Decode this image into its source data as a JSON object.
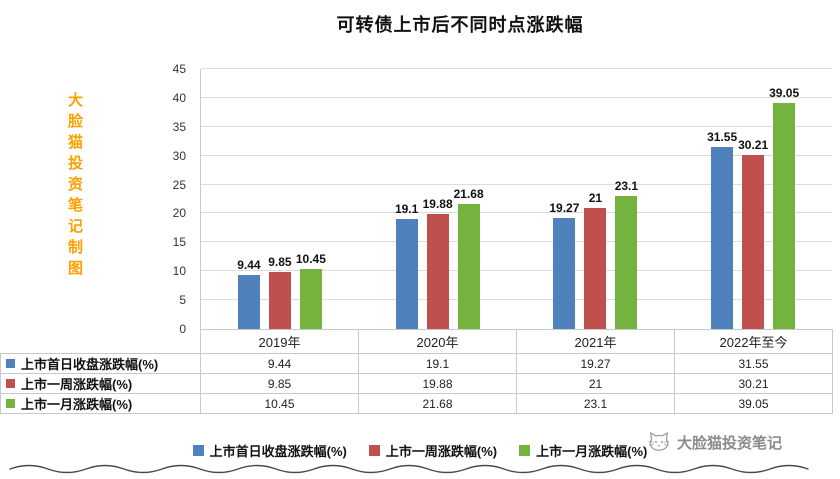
{
  "title": "可转债上市后不同时点涨跌幅",
  "left_watermark": "大脸猫投资笔记制图",
  "footer_watermark": "大脸猫投资笔记",
  "colors": {
    "series_blue": "#4F81BD",
    "series_red": "#C0504D",
    "series_green": "#74B33E",
    "left_watermark": "#FFA000",
    "footer_watermark": "#8C8C8C",
    "grid": "#DDDDDD",
    "table_border": "#C9C9C9"
  },
  "chart_data": {
    "type": "bar",
    "title": "可转债上市后不同时点涨跌幅",
    "xlabel": "",
    "ylabel": "",
    "categories": [
      "2019年",
      "2020年",
      "2021年",
      "2022年至今"
    ],
    "series": [
      {
        "name": "上市首日收盘涨跌幅(%)",
        "color": "#4F81BD",
        "values": [
          9.44,
          19.1,
          19.27,
          31.55
        ]
      },
      {
        "name": "上市一周涨跌幅(%)",
        "color": "#C0504D",
        "values": [
          9.85,
          19.88,
          21,
          30.21
        ]
      },
      {
        "name": "上市一月涨跌幅(%)",
        "color": "#74B33E",
        "values": [
          10.45,
          21.68,
          23.1,
          39.05
        ]
      }
    ],
    "ylim": [
      0,
      45
    ],
    "ytick_step": 5,
    "grid": true,
    "data_labels": true,
    "legend_position": "bottom",
    "data_table": true
  }
}
